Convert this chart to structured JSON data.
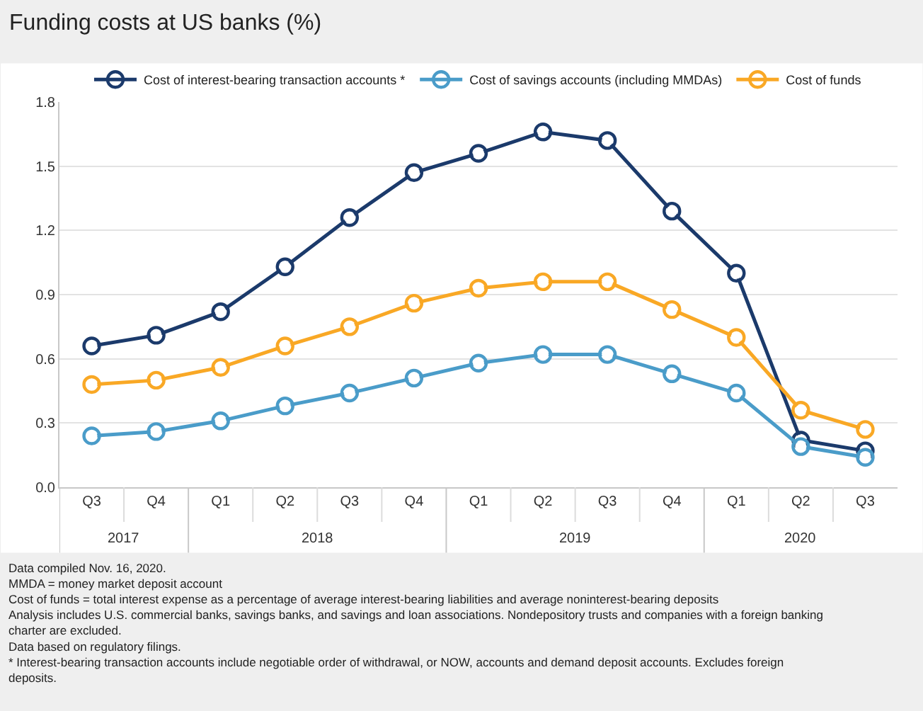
{
  "chart_data": {
    "type": "line",
    "title": "Funding costs at US banks (%)",
    "categories": [
      "Q3",
      "Q4",
      "Q1",
      "Q2",
      "Q3",
      "Q4",
      "Q1",
      "Q2",
      "Q3",
      "Q4",
      "Q1",
      "Q2",
      "Q3"
    ],
    "series": [
      {
        "name": "Cost of interest-bearing transaction accounts *",
        "color": "#1b3a6b",
        "values": [
          0.66,
          0.71,
          0.82,
          1.03,
          1.26,
          1.47,
          1.56,
          1.66,
          1.62,
          1.29,
          1.0,
          0.22,
          0.17
        ]
      },
      {
        "name": "Cost of savings accounts (including MMDAs)",
        "color": "#4a9cc9",
        "values": [
          0.24,
          0.26,
          0.31,
          0.38,
          0.44,
          0.51,
          0.58,
          0.62,
          0.62,
          0.53,
          0.44,
          0.19,
          0.14
        ]
      },
      {
        "name": "Cost of funds",
        "color": "#f9a825",
        "values": [
          0.48,
          0.5,
          0.56,
          0.66,
          0.75,
          0.86,
          0.93,
          0.96,
          0.96,
          0.83,
          0.7,
          0.36,
          0.27
        ]
      }
    ],
    "ylim": [
      0,
      1.8
    ],
    "yticks": [
      {
        "value": 0,
        "label": "0.0"
      },
      0.3,
      0.6,
      0.9,
      1.2,
      1.5,
      1.8
    ],
    "grid": "y",
    "legend": "top",
    "marker": "circle",
    "line_style": "solid",
    "annotations": [
      "2017",
      "2018",
      "2019",
      "2020",
      "Data compiled Nov. 16, 2020.",
      "MMDA = money market deposit account",
      "Cost of funds = total interest expense as a percentage of average interest-bearing liabilities and average noninterest-bearing deposits",
      "Analysis includes U.S. commercial banks, savings banks, and savings and loan associations. Nondepository trusts and companies with a foreign banking charter are excluded.",
      "Data based on regulatory filings.",
      "* Interest-bearing transaction accounts include negotiable order of withdrawal, or NOW, accounts and demand deposit accounts. Excludes foreign deposits."
    ]
  }
}
